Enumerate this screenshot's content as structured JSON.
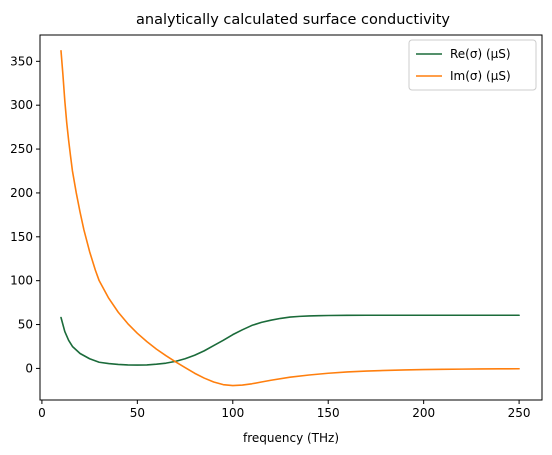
{
  "chart_data": {
    "type": "line",
    "title": "analytically calculated surface conductivity",
    "xlabel": "frequency (THz)",
    "ylabel": "",
    "xlim": [
      -1,
      262
    ],
    "ylim": [
      -36,
      380
    ],
    "xticks": [
      0,
      50,
      100,
      150,
      200,
      250
    ],
    "yticks": [
      0,
      50,
      100,
      150,
      200,
      250,
      300,
      350
    ],
    "grid": false,
    "legend_position": "top-right",
    "series": [
      {
        "name": "Re(σ) (μS)",
        "color": "#1b6b3a",
        "x": [
          10,
          12,
          14,
          16,
          18,
          20,
          25,
          30,
          35,
          40,
          45,
          50,
          55,
          60,
          65,
          70,
          75,
          80,
          85,
          90,
          95,
          100,
          105,
          110,
          115,
          120,
          125,
          130,
          135,
          140,
          145,
          150,
          160,
          170,
          180,
          190,
          200,
          210,
          220,
          230,
          240,
          250
        ],
        "values": [
          58,
          42,
          32,
          25,
          21,
          17,
          11,
          7,
          5.5,
          4.5,
          4,
          3.8,
          4,
          4.8,
          6,
          8,
          11,
          15,
          20,
          26,
          32,
          38.5,
          44,
          49,
          52.5,
          55,
          57,
          58.5,
          59.3,
          59.8,
          60.1,
          60.3,
          60.5,
          60.6,
          60.6,
          60.6,
          60.6,
          60.6,
          60.6,
          60.6,
          60.6,
          60.6
        ]
      },
      {
        "name": "Im(σ) (μS)",
        "color": "#ff7f0e",
        "x": [
          10,
          11,
          12,
          13,
          14,
          15,
          16,
          18,
          20,
          22,
          25,
          28,
          30,
          35,
          40,
          45,
          50,
          55,
          60,
          65,
          70,
          75,
          80,
          85,
          90,
          95,
          100,
          105,
          110,
          115,
          120,
          130,
          140,
          150,
          160,
          170,
          180,
          190,
          200,
          210,
          220,
          230,
          240,
          250
        ],
        "values": [
          362,
          335,
          305,
          280,
          260,
          242,
          225,
          200,
          178,
          158,
          133,
          112,
          100,
          80,
          64,
          51,
          40,
          30.5,
          22,
          14.5,
          7.5,
          1,
          -5.5,
          -11,
          -15.5,
          -18.5,
          -19.5,
          -19,
          -17.5,
          -15.5,
          -13.5,
          -10,
          -7.5,
          -5.5,
          -4,
          -3,
          -2.3,
          -1.7,
          -1.3,
          -1,
          -0.8,
          -0.6,
          -0.5,
          -0.4
        ]
      }
    ]
  }
}
